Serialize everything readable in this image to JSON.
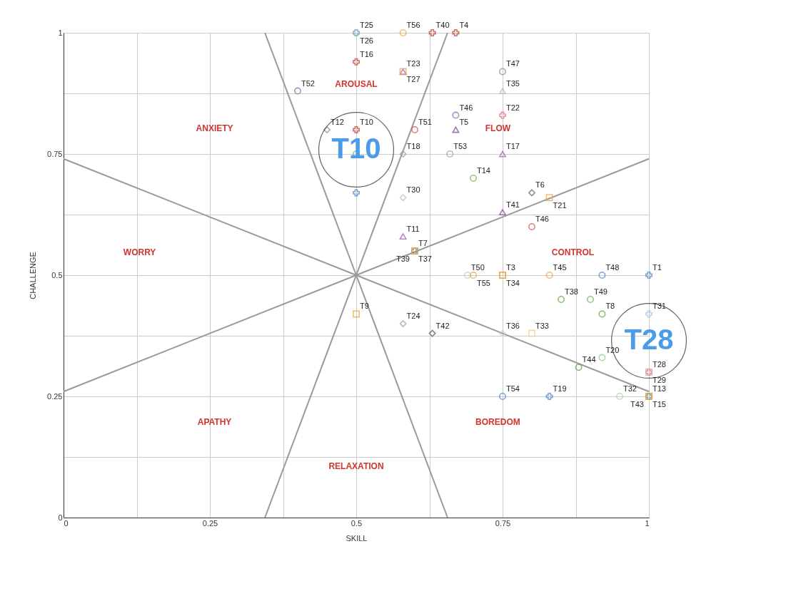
{
  "chart_data": {
    "type": "scatter",
    "xlabel": "SKILL",
    "ylabel": "CHALLENGE",
    "xlim": [
      0,
      1
    ],
    "ylim": [
      0,
      1
    ],
    "xticks": [
      0,
      {
        "value": 0.125,
        "label": null
      },
      0.25,
      {
        "value": 0.375,
        "label": null
      },
      0.5,
      {
        "value": 0.625,
        "label": null
      },
      0.75,
      {
        "value": 0.875,
        "label": null
      },
      1
    ],
    "yticks": [
      0,
      {
        "value": 0.125,
        "label": null
      },
      0.25,
      {
        "value": 0.375,
        "label": null
      },
      0.5,
      {
        "value": 0.625,
        "label": null
      },
      0.75,
      {
        "value": 0.875,
        "label": null
      },
      1
    ],
    "grid": true,
    "series": [
      {
        "type": "line",
        "color": "#999999",
        "x": [
          0.344,
          0.656
        ],
        "values": [
          1,
          0
        ]
      },
      {
        "type": "line",
        "color": "#999999",
        "x": [
          0.656,
          0.344
        ],
        "values": [
          1,
          0
        ]
      },
      {
        "type": "line",
        "color": "#999999",
        "x": [
          0,
          1
        ],
        "values": [
          0.26,
          0.74
        ]
      },
      {
        "type": "line",
        "color": "#999999",
        "x": [
          0,
          1
        ],
        "values": [
          0.74,
          0.26
        ]
      },
      {
        "name": "T25",
        "color": "#8cc68c",
        "marker": "circle",
        "x": [
          0.5
        ],
        "values": [
          1
        ]
      },
      {
        "name": "T26",
        "color": "#7aa6d6",
        "marker": "cross",
        "x": [
          0.5
        ],
        "values": [
          1
        ]
      },
      {
        "name": "T56",
        "color": "#e8a33d",
        "marker": "circle",
        "x": [
          0.58
        ],
        "values": [
          1
        ]
      },
      {
        "name": "T40",
        "color": "#c0392b",
        "marker": "cross",
        "x": [
          0.63
        ],
        "values": [
          1
        ]
      },
      {
        "name": "T4",
        "color": "#c0392b",
        "marker": "cross",
        "x": [
          0.67
        ],
        "values": [
          1
        ]
      },
      {
        "name": "T16",
        "color": "#c0392b",
        "marker": "cross",
        "x": [
          0.5
        ],
        "values": [
          0.94
        ]
      },
      {
        "name": "T23",
        "color": "#9b59b6",
        "marker": "triangle",
        "x": [
          0.58
        ],
        "values": [
          0.92
        ]
      },
      {
        "name": "T27",
        "color": "#e8a33d",
        "marker": "square",
        "x": [
          0.58
        ],
        "values": [
          0.92
        ]
      },
      {
        "name": "T52",
        "color": "#9b59b6",
        "marker": "circle",
        "x": [
          0.4
        ],
        "values": [
          0.88
        ]
      },
      {
        "name": "T47",
        "color": "#888888",
        "marker": "circle",
        "x": [
          0.75
        ],
        "values": [
          0.92
        ]
      },
      {
        "name": "T35",
        "color": "#c9a3dc",
        "marker": "triangle",
        "x": [
          0.75
        ],
        "values": [
          0.88
        ]
      },
      {
        "name": "T46",
        "color": "#9b59b6",
        "marker": "circle",
        "x": [
          0.67
        ],
        "values": [
          0.83
        ]
      },
      {
        "name": "T22",
        "color": "#e06b7a",
        "marker": "cross",
        "x": [
          0.75
        ],
        "values": [
          0.83
        ]
      },
      {
        "name": "T5",
        "color": "#7d3c98",
        "marker": "triangle",
        "x": [
          0.67
        ],
        "values": [
          0.8
        ]
      },
      {
        "name": "T12",
        "color": "#888888",
        "marker": "diamond",
        "x": [
          0.45
        ],
        "values": [
          0.8
        ]
      },
      {
        "name": "T10",
        "color": "#c0392b",
        "marker": "cross",
        "x": [
          0.5
        ],
        "values": [
          0.8
        ]
      },
      {
        "name": "T51",
        "color": "#d04a4a",
        "marker": "circle",
        "x": [
          0.6
        ],
        "values": [
          0.8
        ]
      },
      {
        "color": "#6aaa4a",
        "marker": "circle",
        "x": [
          0.5
        ],
        "values": [
          0.75
        ]
      },
      {
        "name": "T18",
        "color": "#999999",
        "marker": "diamond",
        "x": [
          0.58
        ],
        "values": [
          0.75
        ]
      },
      {
        "name": "T53",
        "color": "#999999",
        "marker": "circle",
        "x": [
          0.66
        ],
        "values": [
          0.75
        ]
      },
      {
        "name": "T17",
        "color": "#9b59b6",
        "marker": "triangle",
        "x": [
          0.75
        ],
        "values": [
          0.75
        ]
      },
      {
        "name": "T14",
        "color": "#6aaa4a",
        "marker": "circle",
        "x": [
          0.7
        ],
        "values": [
          0.7
        ]
      },
      {
        "color": "#4a7fc1",
        "marker": "cross",
        "x": [
          0.5
        ],
        "values": [
          0.67
        ]
      },
      {
        "name": "T30",
        "color": "#bbbbbb",
        "marker": "diamond",
        "x": [
          0.58
        ],
        "values": [
          0.66
        ]
      },
      {
        "name": "T6",
        "color": "#666666",
        "marker": "diamond",
        "x": [
          0.8
        ],
        "values": [
          0.67
        ]
      },
      {
        "name": "T21",
        "color": "#e8a33d",
        "marker": "square",
        "x": [
          0.83
        ],
        "values": [
          0.66
        ]
      },
      {
        "name": "T41",
        "color": "#7d3c98",
        "marker": "triangle",
        "x": [
          0.75
        ],
        "values": [
          0.63
        ]
      },
      {
        "name": "T46",
        "color": "#d04a4a",
        "marker": "circle",
        "x": [
          0.8
        ],
        "values": [
          0.6
        ]
      },
      {
        "name": "T11",
        "color": "#9b59b6",
        "marker": "triangle",
        "x": [
          0.58
        ],
        "values": [
          0.58
        ]
      },
      {
        "name": "T7",
        "color": "#4a7fc1",
        "marker": "cross",
        "x": [
          0.6
        ],
        "values": [
          0.55
        ]
      },
      {
        "name": "T37",
        "color": "#e8a33d",
        "marker": "square",
        "x": [
          0.6
        ],
        "values": [
          0.55
        ]
      },
      {
        "name": "T39",
        "color": "#e8a33d",
        "marker": "square",
        "x": [
          0.6
        ],
        "values": [
          0.55
        ]
      },
      {
        "name": "T50",
        "color": "#a8d5a0",
        "marker": "circle",
        "x": [
          0.69
        ],
        "values": [
          0.5
        ]
      },
      {
        "name": "T55",
        "color": "#e8a33d",
        "marker": "circle",
        "x": [
          0.7
        ],
        "values": [
          0.5
        ]
      },
      {
        "name": "T3",
        "color": "#e8a33d",
        "marker": "square",
        "x": [
          0.75
        ],
        "values": [
          0.5
        ]
      },
      {
        "name": "T34",
        "color": "#e8a33d",
        "marker": "square",
        "x": [
          0.75
        ],
        "values": [
          0.5
        ]
      },
      {
        "name": "T45",
        "color": "#e8a33d",
        "marker": "circle",
        "x": [
          0.83
        ],
        "values": [
          0.5
        ]
      },
      {
        "name": "T48",
        "color": "#4a7fc1",
        "marker": "circle",
        "x": [
          0.92
        ],
        "values": [
          0.5
        ]
      },
      {
        "name": "T1",
        "color": "#4a7fc1",
        "marker": "cross",
        "x": [
          1
        ],
        "values": [
          0.5
        ]
      },
      {
        "name": "T38",
        "color": "#5a9e3a",
        "marker": "circle",
        "x": [
          0.85
        ],
        "values": [
          0.45
        ]
      },
      {
        "name": "T49",
        "color": "#6aaa4a",
        "marker": "circle",
        "x": [
          0.9
        ],
        "values": [
          0.45
        ]
      },
      {
        "name": "T8",
        "color": "#5a9e3a",
        "marker": "circle",
        "x": [
          0.92
        ],
        "values": [
          0.42
        ]
      },
      {
        "name": "T31",
        "color": "#9fc3e6",
        "marker": "cross",
        "x": [
          1
        ],
        "values": [
          0.42
        ]
      },
      {
        "name": "T9",
        "color": "#e8a33d",
        "marker": "square",
        "x": [
          0.5
        ],
        "values": [
          0.42
        ]
      },
      {
        "name": "T24",
        "color": "#999999",
        "marker": "diamond",
        "x": [
          0.58
        ],
        "values": [
          0.4
        ]
      },
      {
        "name": "T42",
        "color": "#555555",
        "marker": "diamond",
        "x": [
          0.63
        ],
        "values": [
          0.38
        ]
      },
      {
        "name": "T36",
        "color": "#cccccc",
        "marker": "diamond",
        "x": [
          0.75
        ],
        "values": [
          0.38
        ]
      },
      {
        "name": "T33",
        "color": "#f5c98a",
        "marker": "square",
        "x": [
          0.8
        ],
        "values": [
          0.38
        ]
      },
      {
        "name": "T20",
        "color": "#8cc68c",
        "marker": "circle",
        "x": [
          0.92
        ],
        "values": [
          0.33
        ]
      },
      {
        "name": "T44",
        "color": "#5a9e3a",
        "marker": "circle",
        "x": [
          0.88
        ],
        "values": [
          0.31
        ]
      },
      {
        "name": "T28",
        "color": "#e06b7a",
        "marker": "cross",
        "x": [
          1
        ],
        "values": [
          0.3
        ]
      },
      {
        "name": "T29",
        "color": "#e8a0b0",
        "marker": "square",
        "x": [
          1
        ],
        "values": [
          0.3
        ]
      },
      {
        "name": "T54",
        "color": "#4a7fc1",
        "marker": "circle",
        "x": [
          0.75
        ],
        "values": [
          0.25
        ]
      },
      {
        "name": "T19",
        "color": "#4a7fc1",
        "marker": "cross",
        "x": [
          0.83
        ],
        "values": [
          0.25
        ]
      },
      {
        "name": "T32",
        "color": "#a8d5a0",
        "marker": "circle",
        "x": [
          0.95
        ],
        "values": [
          0.25
        ]
      },
      {
        "name": "T13",
        "color": "#4a7fc1",
        "marker": "cross",
        "x": [
          1
        ],
        "values": [
          0.25
        ]
      },
      {
        "name": "T15",
        "color": "#e8a33d",
        "marker": "square",
        "x": [
          1
        ],
        "values": [
          0.25
        ]
      },
      {
        "name": "T43",
        "color": "#e8a33d",
        "marker": "square",
        "x": [
          1
        ],
        "values": [
          0.25
        ]
      }
    ],
    "annotations": [
      "AROUSAL",
      "FLOW",
      "CONTROL",
      "BOREDOM",
      "RELAXATION",
      "APATHY",
      "WORRY",
      "ANXIETY",
      {
        "text": "T10",
        "x": 0.5,
        "y": 0.8
      },
      {
        "text": "T28",
        "x": 1,
        "y": 0.3
      }
    ]
  }
}
